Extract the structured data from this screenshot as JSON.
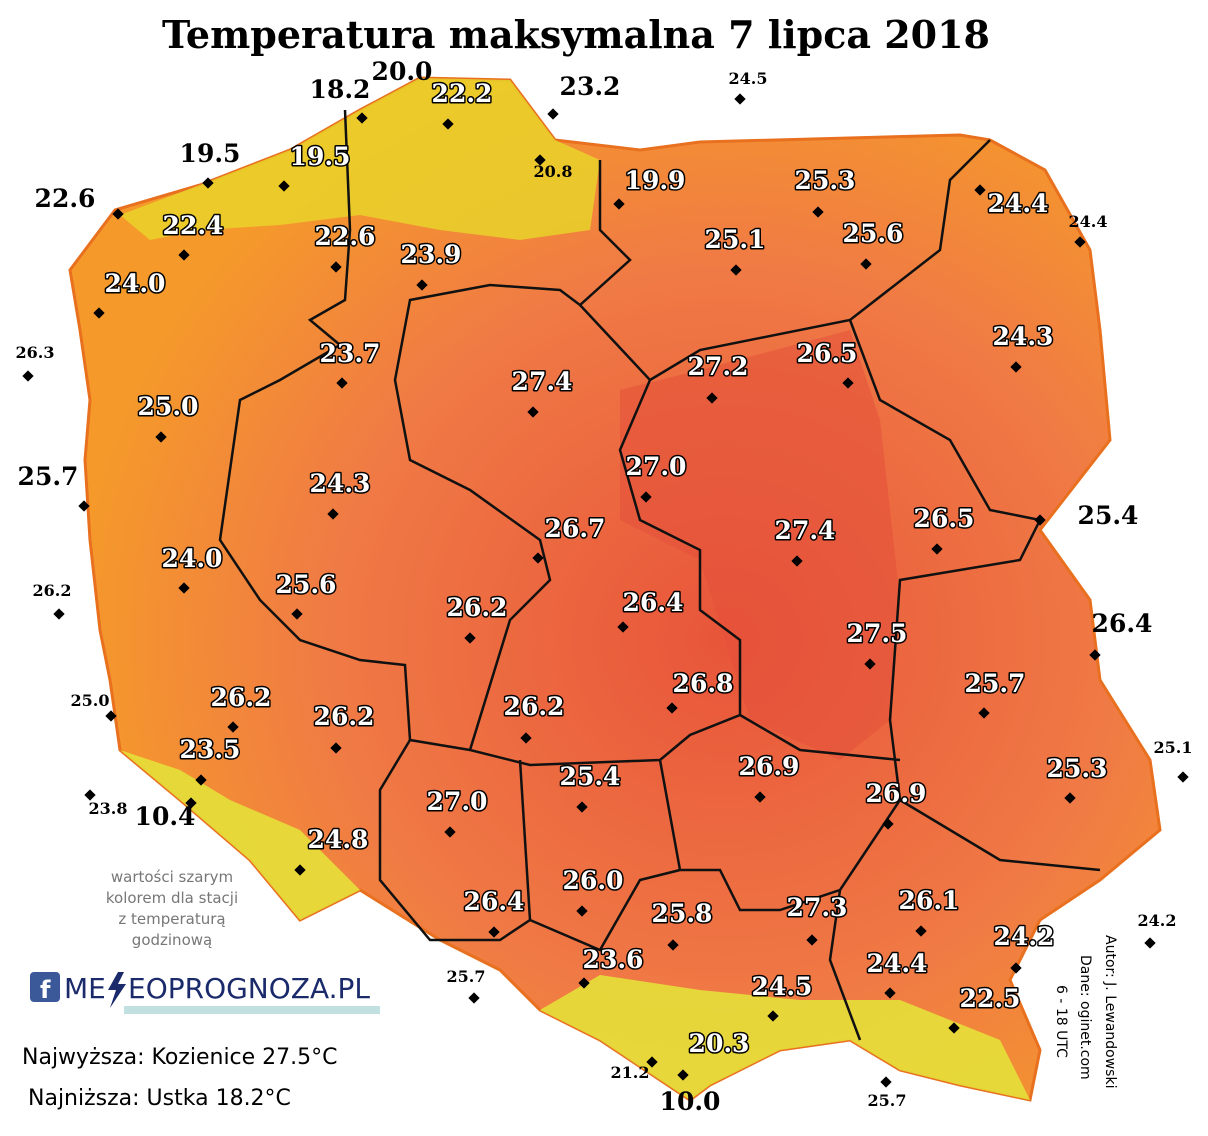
{
  "title": "Temperatura maksymalna 7 lipca 2018",
  "stations": [
    "20.0",
    "18.2",
    "22.2",
    "23.2",
    "24.5",
    "20.8",
    "19.5",
    "19.5",
    "19.9",
    "25.3",
    "22.6",
    "24.4",
    "24.4",
    "22.4",
    "25.1",
    "25.6",
    "22.6",
    "23.9",
    "24.0",
    "24.3",
    "26.3",
    "23.7",
    "26.5",
    "27.2",
    "27.4",
    "25.0",
    "27.0",
    "25.7",
    "24.3",
    "25.4",
    "26.5",
    "26.7",
    "27.4",
    "24.0",
    "26.2",
    "25.6",
    "26.2",
    "26.4",
    "26.4",
    "27.5",
    "25.7",
    "26.8",
    "25.0",
    "26.2",
    "26.2",
    "26.2",
    "23.5",
    "25.1",
    "25.3",
    "26.9",
    "25.4",
    "23.8",
    "10.4",
    "27.0",
    "26.9",
    "24.8",
    "26.0",
    "26.1",
    "26.4",
    "27.3",
    "25.8",
    "24.2",
    "24.2",
    "23.6",
    "24.4",
    "25.7",
    "24.5",
    "22.5",
    "20.3",
    "21.2",
    "10.0",
    "25.7"
  ],
  "note": [
    "wartości szarym",
    "kolorem dla stacji",
    "z temperaturą",
    "godzinową"
  ],
  "logo": {
    "left": "ME",
    "right": "EOPROGNOZA.PL"
  },
  "stats": {
    "highest": "Najwyższa: Kozienice 27.5°C",
    "lowest": "Najniższa: Ustka 18.2°C"
  },
  "credits": [
    "Autor: J. Lewandowski",
    "Dane: oginet.com",
    "6 - 18 UTC"
  ]
}
